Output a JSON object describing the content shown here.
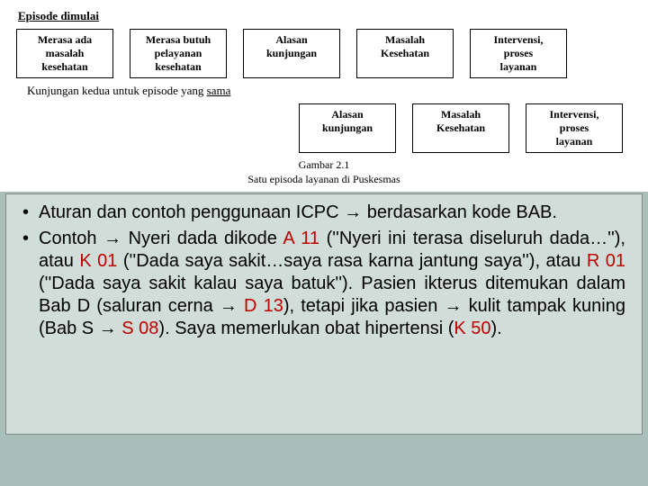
{
  "diagram": {
    "header1": "Episode dimulai",
    "row1": [
      "Merasa ada\nmasalah\nkesehatan",
      "Merasa butuh\npelayanan\nkesehatan",
      "Alasan\nkunjungan",
      "Masalah\nKesehatan",
      "Intervensi,\nproses\nlayanan"
    ],
    "header2_a": "Kunjungan kedua untuk episode yang ",
    "header2_b": "sama",
    "row2": [
      "Alasan\nkunjungan",
      "Masalah\nKesehatan",
      "Intervensi,\nproses\nlayanan"
    ],
    "caption1": "Gambar 2.1",
    "caption2": "Satu episoda layanan di Puskesmas"
  },
  "bullets": {
    "b1_a": "Aturan dan contoh penggunaan ICPC ",
    "b1_b": " berdasarkan kode BAB.",
    "b2_a": "Contoh ",
    "b2_b": " Nyeri dada dikode ",
    "b2_code1": "A 11",
    "b2_c": " (''Nyeri ini terasa diseluruh dada…''), atau ",
    "b2_code2": "K 01",
    "b2_d": " (''Dada saya sakit…saya rasa karna jantung saya''), atau ",
    "b2_code3": "R 01",
    "b2_e": " (''Dada saya sakit kalau saya batuk''). Pasien ikterus ditemukan dalam Bab D (saluran cerna ",
    "b2_arrow2": " ",
    "b2_code4": "D 13",
    "b2_f": "), tetapi jika pasien ",
    "b2_g": " kulit tampak kuning (Bab S ",
    "b2_code5": "S 08",
    "b2_h": "). Saya memerlukan obat hipertensi (",
    "b2_code6": "K 50",
    "b2_i": ")."
  },
  "style": {
    "arrow_glyph": "→",
    "code_color": "#c00000",
    "panel_bg": "#d0ddd9",
    "page_bg": "#a8beb8"
  }
}
